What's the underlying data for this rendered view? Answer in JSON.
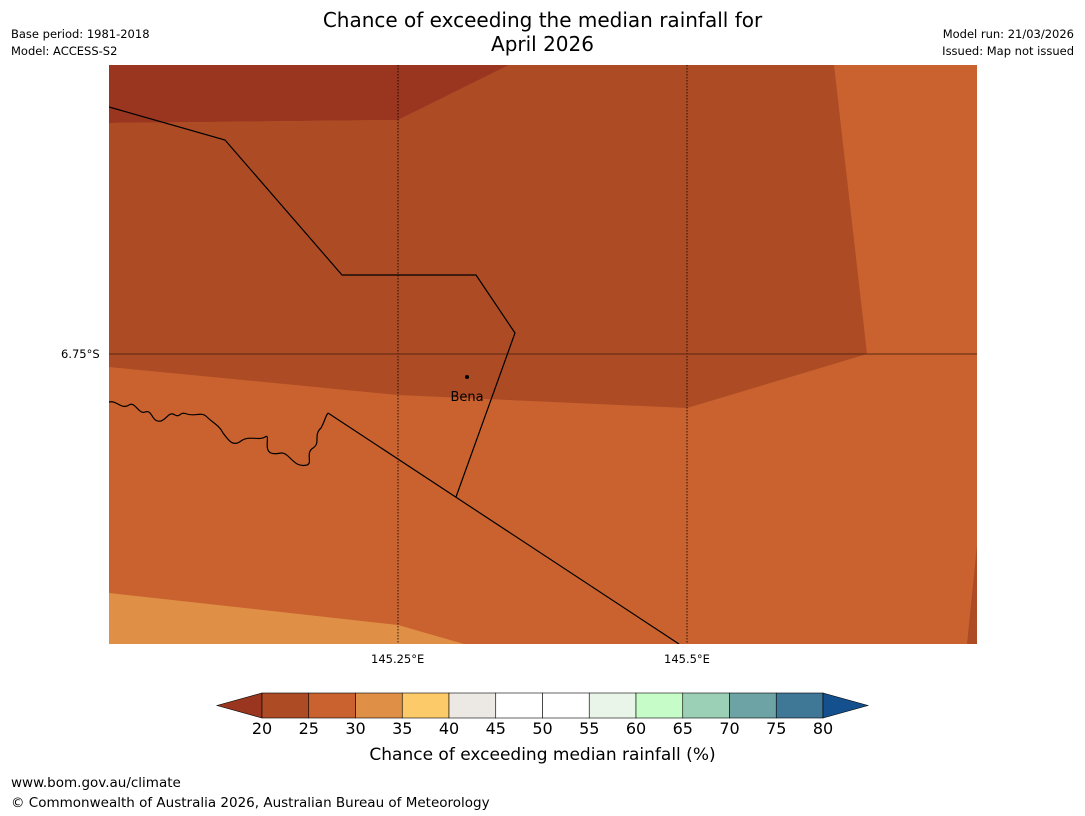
{
  "header": {
    "title_line1": "Chance of exceeding the median rainfall for",
    "title_line2": "April 2026",
    "base_period": "Base period: 1981-2018",
    "model": "Model: ACCESS-S2",
    "model_run": "Model run: 21/03/2026",
    "issued": "Issued: Map not issued"
  },
  "map": {
    "lat_label": "6.75°S",
    "lon_labels": [
      "145.25°E",
      "145.5°E"
    ],
    "place_name": "Bena"
  },
  "legend": {
    "ticks": [
      "20",
      "25",
      "30",
      "35",
      "40",
      "45",
      "50",
      "55",
      "60",
      "65",
      "70",
      "75",
      "80"
    ],
    "title": "Chance of exceeding median rainfall (%)",
    "colors": [
      "#9a3620",
      "#ad4b25",
      "#c9622f",
      "#df9046",
      "#fdca6a",
      "#ece8e3",
      "#ffffff",
      "#ffffff",
      "#e9f5e8",
      "#c6fcc8",
      "#9bd0b6",
      "#6da3a4",
      "#3f7796",
      "#14508e"
    ]
  },
  "footer": {
    "url": "www.bom.gov.au/climate",
    "copyright": "© Commonwealth of Australia 2026, Australian Bureau of Meteorology"
  }
}
